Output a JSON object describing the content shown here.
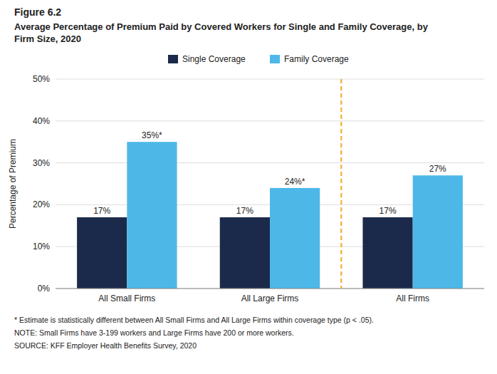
{
  "chart_data": {
    "type": "bar",
    "title": "Figure 6.2",
    "subtitle": "Average Percentage of Premium Paid by Covered Workers for Single and Family Coverage, by\nFirm Size, 2020",
    "categories": [
      "All Small Firms",
      "All Large Firms",
      "All Firms"
    ],
    "series": [
      {
        "name": "Single Coverage",
        "color": "#1B2A4A",
        "values": [
          17,
          17,
          17
        ],
        "value_labels": [
          "17%",
          "17%",
          "17%"
        ]
      },
      {
        "name": "Family Coverage",
        "color": "#4DB8E8",
        "values": [
          35,
          24,
          27
        ],
        "value_labels": [
          "35%*",
          "24%*",
          "27%"
        ]
      }
    ],
    "ylabel": "Percentage of Premium",
    "ylim": [
      0,
      50
    ],
    "yticks": [
      {
        "value": 0,
        "label": "0%"
      },
      {
        "value": 10,
        "label": "10%"
      },
      {
        "value": 20,
        "label": "20%"
      },
      {
        "value": 30,
        "label": "30%"
      },
      {
        "value": 40,
        "label": "40%"
      },
      {
        "value": 50,
        "label": "50%"
      }
    ],
    "grid": true,
    "data_labels": true,
    "legend": "top",
    "divider": {
      "after": "All Large Firms",
      "color": "#F5A623",
      "line_style": "dashed"
    },
    "annotations": [
      "* Estimate is statistically different between All Small Firms and All Large Firms within coverage type (p < .05).",
      "NOTE:  Small Firms have 3-199 workers and Large Firms have 200 or more workers.",
      "SOURCE:  KFF Employer Health Benefits Survey, 2020"
    ]
  }
}
